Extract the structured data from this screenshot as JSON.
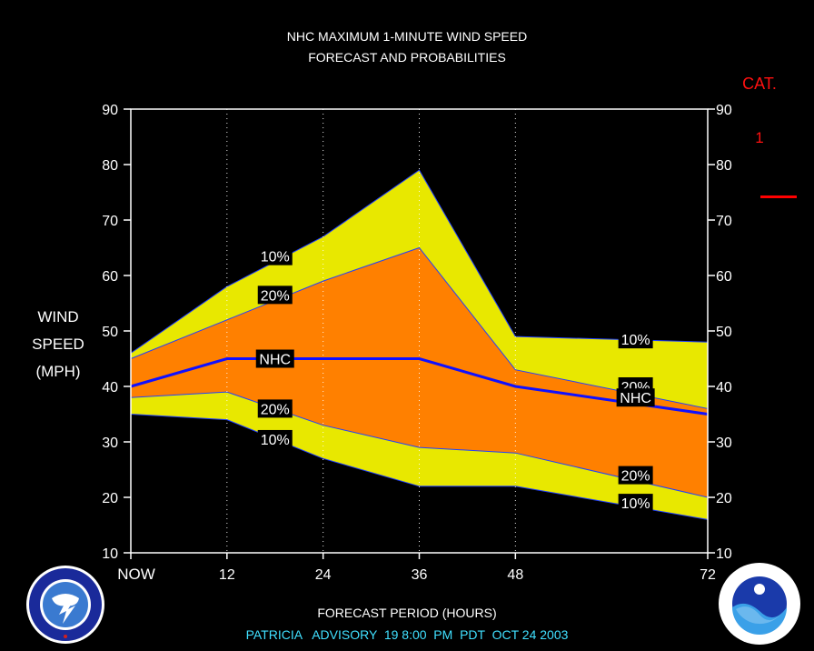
{
  "title_line1": "NHC MAXIMUM 1-MINUTE WIND SPEED",
  "title_line2": "FORECAST AND PROBABILITIES",
  "ylabel_lines": [
    "WIND",
    "SPEED",
    "(MPH)"
  ],
  "xlabel": "FORECAST PERIOD (HOURS)",
  "advisory": "PATRICIA   ADVISORY  19 8:00  PM  PDT  OCT 24 2003",
  "category": {
    "label": "CAT.",
    "value": "1",
    "line_color": "#ff0000"
  },
  "logos": {
    "left": "nws-logo-icon",
    "right": "noaa-logo-icon"
  },
  "colors": {
    "outer_band": "#e8e800",
    "inner_band": "#ff8000",
    "nhc_line": "#1010ff",
    "grid": "#ffffff",
    "plot_bg": "#000000"
  },
  "chart_data": {
    "type": "area",
    "title": "NHC MAXIMUM 1-MINUTE WIND SPEED FORECAST AND PROBABILITIES",
    "xlabel": "FORECAST PERIOD (HOURS)",
    "ylabel": "WIND SPEED (MPH)",
    "xlim": [
      0,
      72
    ],
    "ylim": [
      10,
      90
    ],
    "x_ticks": [
      0,
      12,
      24,
      36,
      48,
      72
    ],
    "x_tick_labels": [
      "NOW",
      "12",
      "24",
      "36",
      "48",
      "72"
    ],
    "y_ticks": [
      10,
      20,
      30,
      40,
      50,
      60,
      70,
      80,
      90
    ],
    "x": [
      0,
      12,
      24,
      36,
      48,
      72
    ],
    "series": [
      {
        "name": "10%",
        "values": [
          46,
          58,
          67,
          79,
          49,
          48
        ]
      },
      {
        "name": "20%",
        "values": [
          45,
          52,
          59,
          65,
          43,
          36
        ]
      },
      {
        "name": "NHC",
        "values": [
          40,
          45,
          45,
          45,
          40,
          35
        ]
      },
      {
        "name": "20%",
        "values": [
          38,
          39,
          33,
          29,
          28,
          20
        ]
      },
      {
        "name": "10%",
        "values": [
          35,
          34,
          27,
          22,
          22,
          16
        ]
      }
    ],
    "band_labels": [
      {
        "text": "10%",
        "x": 18,
        "y": 63.5
      },
      {
        "text": "20%",
        "x": 18,
        "y": 56.5
      },
      {
        "text": "NHC",
        "x": 18,
        "y": 45
      },
      {
        "text": "20%",
        "x": 18,
        "y": 36
      },
      {
        "text": "10%",
        "x": 18,
        "y": 30.5
      },
      {
        "text": "10%",
        "x": 63,
        "y": 48.5
      },
      {
        "text": "20%",
        "x": 63,
        "y": 40
      },
      {
        "text": "NHC",
        "x": 63,
        "y": 38
      },
      {
        "text": "20%",
        "x": 63,
        "y": 24
      },
      {
        "text": "10%",
        "x": 63,
        "y": 19
      }
    ]
  }
}
